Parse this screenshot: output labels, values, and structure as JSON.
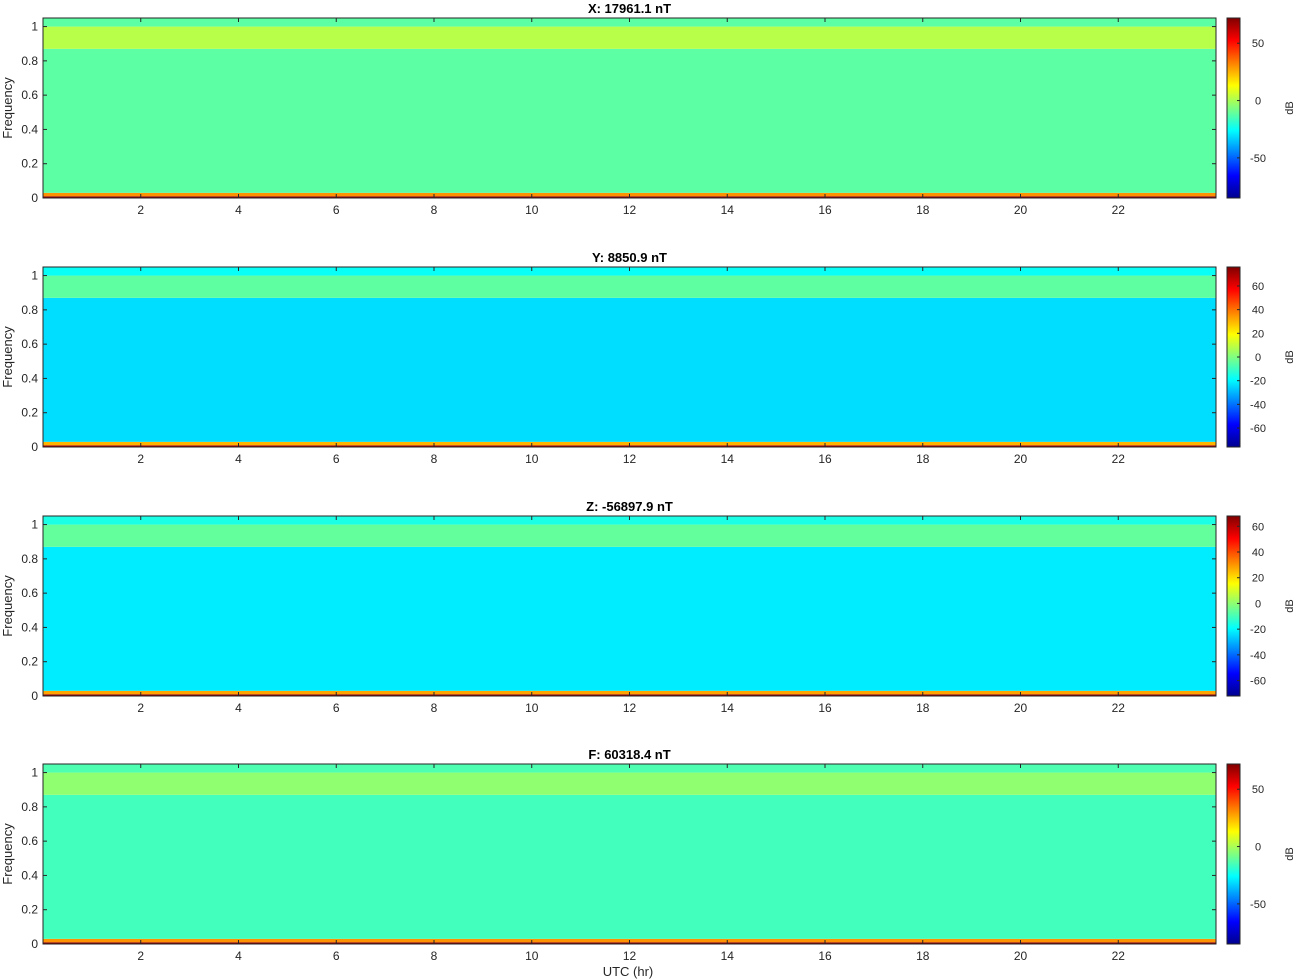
{
  "figure": {
    "xlabel": "UTC (hr)"
  },
  "colormap": [
    "#00008f",
    "#0000ff",
    "#0080ff",
    "#00ffff",
    "#80ff80",
    "#ffff00",
    "#ff8000",
    "#ff0000",
    "#800000"
  ],
  "chart_data": [
    {
      "type": "heatmap",
      "title": "X: 17961.1 nT",
      "ylabel": "Frequency",
      "colorbar_label": "dB",
      "xlim": [
        0,
        24
      ],
      "ylim": [
        0,
        1.05
      ],
      "x_ticks": [
        2,
        4,
        6,
        8,
        10,
        12,
        14,
        16,
        18,
        20,
        22
      ],
      "y_ticks": [
        0,
        0.2,
        0.4,
        0.6,
        0.8,
        1
      ],
      "clim": [
        -85,
        72
      ],
      "colorbar_ticks": [
        50,
        0,
        -50
      ],
      "bands": [
        {
          "freq_range": [
            0,
            0.01
          ],
          "level_db": 70
        },
        {
          "freq_range": [
            0.01,
            0.03
          ],
          "level_db": 30
        },
        {
          "freq_range": [
            0.03,
            0.87
          ],
          "level_db": -12
        },
        {
          "freq_range": [
            0.87,
            1.0
          ],
          "level_db": 2
        },
        {
          "freq_range": [
            1.0,
            1.05
          ],
          "level_db": -12
        }
      ]
    },
    {
      "type": "heatmap",
      "title": "Y: 8850.9 nT",
      "ylabel": "Frequency",
      "colorbar_label": "dB",
      "xlim": [
        0,
        24
      ],
      "ylim": [
        0,
        1.05
      ],
      "x_ticks": [
        2,
        4,
        6,
        8,
        10,
        12,
        14,
        16,
        18,
        20,
        22
      ],
      "y_ticks": [
        0,
        0.2,
        0.4,
        0.6,
        0.8,
        1
      ],
      "clim": [
        -76,
        76
      ],
      "colorbar_ticks": [
        60,
        40,
        20,
        0,
        -20,
        -40,
        -60
      ],
      "bands": [
        {
          "freq_range": [
            0,
            0.01
          ],
          "level_db": 70
        },
        {
          "freq_range": [
            0.01,
            0.03
          ],
          "level_db": 30
        },
        {
          "freq_range": [
            0.03,
            0.87
          ],
          "level_db": -24
        },
        {
          "freq_range": [
            0.87,
            1.0
          ],
          "level_db": -5
        },
        {
          "freq_range": [
            1.0,
            1.05
          ],
          "level_db": -18
        }
      ]
    },
    {
      "type": "heatmap",
      "title": "Z: -56897.9 nT",
      "ylabel": "Frequency",
      "colorbar_label": "dB",
      "xlim": [
        0,
        24
      ],
      "ylim": [
        0,
        1.05
      ],
      "x_ticks": [
        2,
        4,
        6,
        8,
        10,
        12,
        14,
        16,
        18,
        20,
        22
      ],
      "y_ticks": [
        0,
        0.2,
        0.4,
        0.6,
        0.8,
        1
      ],
      "clim": [
        -72,
        68
      ],
      "colorbar_ticks": [
        60,
        40,
        20,
        0,
        -20,
        -40,
        -60
      ],
      "bands": [
        {
          "freq_range": [
            0,
            0.01
          ],
          "level_db": 65
        },
        {
          "freq_range": [
            0.01,
            0.03
          ],
          "level_db": 28
        },
        {
          "freq_range": [
            0.03,
            0.87
          ],
          "level_db": -22
        },
        {
          "freq_range": [
            0.87,
            1.0
          ],
          "level_db": -6
        },
        {
          "freq_range": [
            1.0,
            1.05
          ],
          "level_db": -16
        }
      ]
    },
    {
      "type": "heatmap",
      "title": "F: 60318.4 nT",
      "ylabel": "Frequency",
      "colorbar_label": "dB",
      "xlim": [
        0,
        24
      ],
      "ylim": [
        0,
        1.05
      ],
      "x_ticks": [
        2,
        4,
        6,
        8,
        10,
        12,
        14,
        16,
        18,
        20,
        22
      ],
      "y_ticks": [
        0,
        0.2,
        0.4,
        0.6,
        0.8,
        1
      ],
      "clim": [
        -85,
        72
      ],
      "colorbar_ticks": [
        50,
        0,
        -50
      ],
      "bands": [
        {
          "freq_range": [
            0,
            0.01
          ],
          "level_db": 70
        },
        {
          "freq_range": [
            0.01,
            0.03
          ],
          "level_db": 30
        },
        {
          "freq_range": [
            0.03,
            0.87
          ],
          "level_db": -16
        },
        {
          "freq_range": [
            0.87,
            1.0
          ],
          "level_db": -4
        },
        {
          "freq_range": [
            1.0,
            1.05
          ],
          "level_db": -14
        }
      ]
    }
  ]
}
